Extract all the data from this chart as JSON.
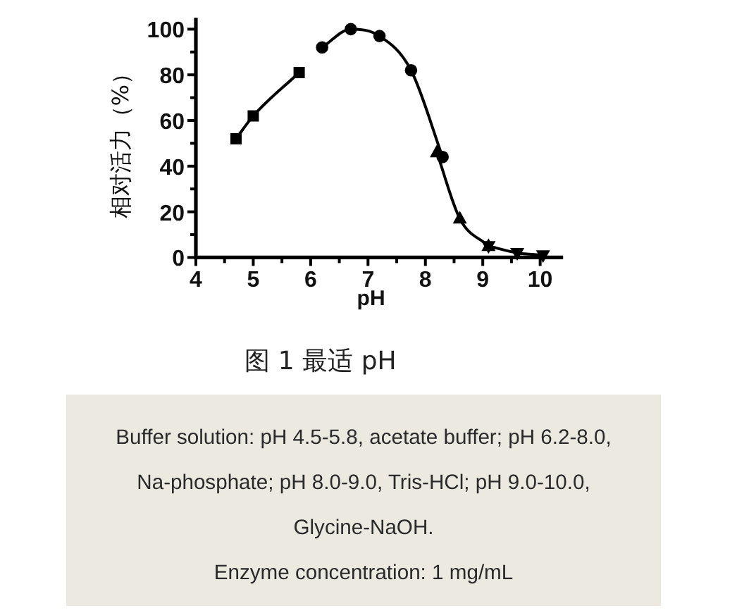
{
  "chart_data": {
    "type": "line",
    "xlabel": "pH",
    "ylabel": "相对活力（%）",
    "xlim": [
      4,
      10.4
    ],
    "ylim": [
      0,
      105
    ],
    "xticks": [
      4,
      {
        "value": 4.5,
        "label": null
      },
      5,
      {
        "value": 5.5,
        "label": null
      },
      6,
      {
        "value": 6.5,
        "label": null
      },
      7,
      {
        "value": 7.5,
        "label": null
      },
      8,
      {
        "value": 8.5,
        "label": null
      },
      9,
      {
        "value": 9.5,
        "label": null
      },
      10
    ],
    "yticks": [
      0,
      {
        "value": 10,
        "label": null
      },
      20,
      {
        "value": 30,
        "label": null
      },
      40,
      {
        "value": 50,
        "label": null
      },
      60,
      {
        "value": 70,
        "label": null
      },
      80,
      {
        "value": 90,
        "label": null
      },
      100
    ],
    "line_style": "solid",
    "series": [
      {
        "color": "#000000",
        "marker": "square",
        "x": [
          4.7,
          5.0,
          5.8
        ],
        "values": [
          52,
          62,
          81
        ]
      },
      {
        "color": "#000000",
        "marker": "circle",
        "x": [
          6.2,
          6.7,
          7.2,
          7.75,
          8.3
        ],
        "values": [
          92,
          100,
          97,
          82,
          44
        ]
      },
      {
        "color": "#000000",
        "marker": "triangle",
        "x": [
          8.2,
          8.6,
          9.1
        ],
        "values": [
          46,
          17,
          5
        ]
      },
      {
        "color": "#000000",
        "marker": "triangle-down",
        "x": [
          9.1,
          9.6,
          10.05
        ],
        "values": [
          5,
          2,
          1
        ]
      }
    ],
    "annotations": [
      "图 1 最适 pH",
      "Buffer solution: pH 4.5-5.8, acetate buffer; pH 6.2-8.0, Na-phosphate; pH 8.0-9.0, Tris-HCl; pH 9.0-10.0, Glycine-NaOH.",
      "Enzyme concentration: 1 mg/mL"
    ]
  }
}
